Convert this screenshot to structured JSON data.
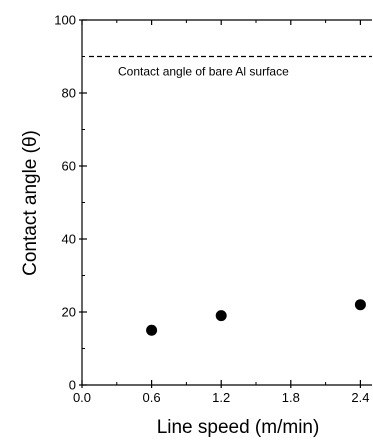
{
  "chart_data": {
    "type": "scatter",
    "xlabel": "Line speed (m/min)",
    "ylabel": "Contact angle (θ)",
    "xlim": [
      0,
      2.5
    ],
    "ylim": [
      0,
      100
    ],
    "xticks": [
      0.0,
      0.6,
      1.2,
      1.8,
      2.4
    ],
    "xtick_labels": [
      "0.0",
      "0.6",
      "1.2",
      "1.8",
      "2.4"
    ],
    "yticks": [
      0,
      20,
      40,
      60,
      80,
      100
    ],
    "ytick_labels": [
      "0",
      "20",
      "40",
      "60",
      "80",
      "100"
    ],
    "series": [
      {
        "x": [
          0.6,
          1.2,
          2.4
        ],
        "y": [
          15,
          19,
          22
        ]
      }
    ],
    "reference_line": {
      "y": 90,
      "style": "dashed",
      "label": "Contact angle of bare Al surface"
    },
    "marker_color": "#000000",
    "grid": false
  }
}
